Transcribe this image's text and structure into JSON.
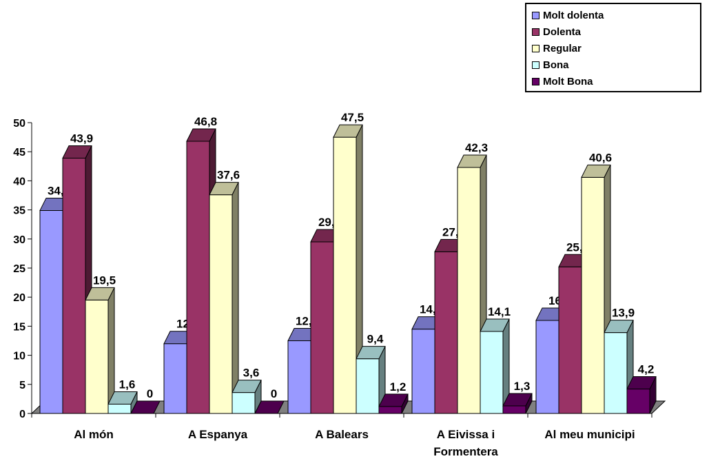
{
  "chart_data": {
    "type": "bar",
    "title": "",
    "xlabel": "",
    "ylabel": "",
    "ylim": [
      0,
      50
    ],
    "yticks": [
      0,
      5,
      10,
      15,
      20,
      25,
      30,
      35,
      40,
      45,
      50
    ],
    "grid": false,
    "three_d": true,
    "legend_position": "top-right",
    "categories": [
      "Al món",
      "A Espanya",
      "A Balears",
      "A Eivissa i Formentera",
      "Al meu municipi"
    ],
    "series": [
      {
        "name": "Molt dolenta",
        "color": "#9999FF",
        "values": [
          34.9,
          12,
          12.5,
          14.5,
          16
        ],
        "labels": [
          "34,9",
          "12",
          "12,5",
          "14,5",
          "16"
        ]
      },
      {
        "name": "Dolenta",
        "color": "#993366",
        "values": [
          43.9,
          46.8,
          29.5,
          27.8,
          25.2
        ],
        "labels": [
          "43,9",
          "46,8",
          "29,5",
          "27,8",
          "25,2"
        ]
      },
      {
        "name": "Regular",
        "color": "#FFFFCC",
        "values": [
          19.5,
          37.6,
          47.5,
          42.3,
          40.6
        ],
        "labels": [
          "19,5",
          "37,6",
          "47,5",
          "42,3",
          "40,6"
        ]
      },
      {
        "name": "Bona",
        "color": "#CCFFFF",
        "values": [
          1.6,
          3.6,
          9.4,
          14.1,
          13.9
        ],
        "labels": [
          "1,6",
          "3,6",
          "9,4",
          "14,1",
          "13,9"
        ]
      },
      {
        "name": "Molt Bona",
        "color": "#660066",
        "values": [
          0,
          0,
          1.2,
          1.3,
          4.2
        ],
        "labels": [
          "0",
          "0",
          "1,2",
          "1,3",
          "4,2"
        ]
      }
    ]
  }
}
